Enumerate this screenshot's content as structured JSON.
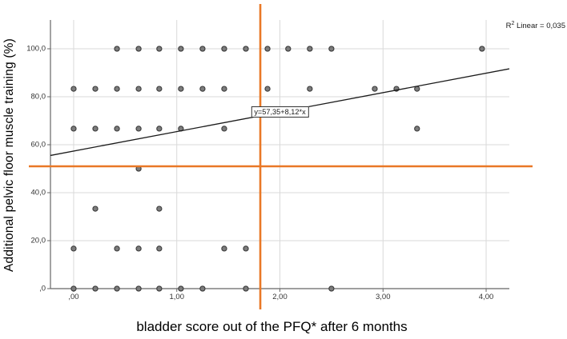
{
  "figure": {
    "r2": {
      "prefix": "R",
      "sup": "2",
      "rest": " Linear = 0,035"
    }
  },
  "chart_data": {
    "type": "scatter",
    "title": "",
    "xlabel": "bladder score out of the PFQ* after 6 months",
    "ylabel": "Additional pelvic floor muscle training (%)",
    "x_tick_labels": [
      ",00",
      "1,00",
      "2,00",
      "3,00",
      "4,00"
    ],
    "x_tick_values": [
      0,
      1,
      2,
      3,
      4
    ],
    "y_tick_labels": [
      ",0",
      "20,0",
      "40,0",
      "60,0",
      "80,0",
      "100,0"
    ],
    "y_tick_values": [
      0,
      20,
      40,
      60,
      80,
      100
    ],
    "xlim": [
      -0.225,
      4.225
    ],
    "ylim": [
      0,
      112
    ],
    "grid": true,
    "legend": "none",
    "points": [
      [
        0.42,
        100
      ],
      [
        0.63,
        100
      ],
      [
        0.83,
        100
      ],
      [
        1.04,
        100
      ],
      [
        1.25,
        100
      ],
      [
        1.46,
        100
      ],
      [
        1.67,
        100
      ],
      [
        1.88,
        100
      ],
      [
        2.08,
        100
      ],
      [
        2.29,
        100
      ],
      [
        2.5,
        100
      ],
      [
        3.96,
        100
      ],
      [
        0,
        83.3
      ],
      [
        0.21,
        83.3
      ],
      [
        0.42,
        83.3
      ],
      [
        0.63,
        83.3
      ],
      [
        0.83,
        83.3
      ],
      [
        1.04,
        83.3
      ],
      [
        1.25,
        83.3
      ],
      [
        1.46,
        83.3
      ],
      [
        1.88,
        83.3
      ],
      [
        2.29,
        83.3
      ],
      [
        2.92,
        83.3
      ],
      [
        3.13,
        83.3
      ],
      [
        3.33,
        83.3
      ],
      [
        0,
        66.7
      ],
      [
        0.21,
        66.7
      ],
      [
        0.42,
        66.7
      ],
      [
        0.63,
        66.7
      ],
      [
        0.83,
        66.7
      ],
      [
        1.04,
        66.7
      ],
      [
        1.46,
        66.7
      ],
      [
        3.33,
        66.7
      ],
      [
        0.63,
        50
      ],
      [
        0.21,
        33.3
      ],
      [
        0.83,
        33.3
      ],
      [
        0,
        16.7
      ],
      [
        0.42,
        16.7
      ],
      [
        0.63,
        16.7
      ],
      [
        0.83,
        16.7
      ],
      [
        1.46,
        16.7
      ],
      [
        1.67,
        16.7
      ],
      [
        0,
        0
      ],
      [
        0.21,
        0
      ],
      [
        0.42,
        0
      ],
      [
        0.63,
        0
      ],
      [
        0.83,
        0
      ],
      [
        1.04,
        0
      ],
      [
        1.25,
        0
      ],
      [
        1.67,
        0
      ],
      [
        2.5,
        0
      ]
    ],
    "regression_line": {
      "label": "y=57,35+8,12*x",
      "intercept": 57.35,
      "slope": 8.12
    },
    "r2_annotation": "R² Linear = 0,035",
    "reference_lines": [
      {
        "orientation": "vertical",
        "x": 1.81
      },
      {
        "orientation": "horizontal",
        "y": 51
      }
    ],
    "colors": {
      "point_fill": "#7c7c7c",
      "point_stroke": "#3a3a3a",
      "reference": "#e97826",
      "regression": "#1a1a1a",
      "grid": "#d9d9d9",
      "axis": "#666666",
      "background": "#ffffff"
    }
  }
}
